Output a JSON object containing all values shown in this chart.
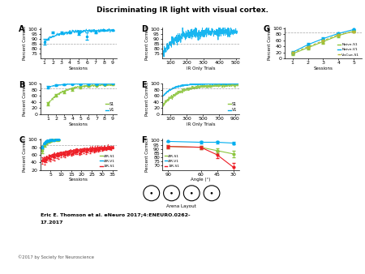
{
  "title": "Discriminating IR light with visual cortex.",
  "citation_line1": "Eric E. Thomson et al. eNeuro 2017;4:ENEURO.0262-",
  "citation_line2": "17.2017",
  "copyright": "©2017 by Society for Neuroscience",
  "color_cyan": "#00AEEF",
  "color_green": "#8DC63F",
  "color_blue": "#0072BC",
  "color_red": "#ED1C24",
  "color_olive": "#B5B935",
  "panel_A": {
    "label": "A",
    "xlabel": "Sessions",
    "ylabel": "Percent Correct",
    "xlim": [
      0.5,
      9.5
    ],
    "ylim": [
      70,
      102
    ],
    "yticks": [
      75,
      80,
      85,
      90,
      95,
      100
    ],
    "xticks": [
      1,
      2,
      3,
      4,
      5,
      6,
      7,
      8,
      9
    ],
    "sessions": [
      1,
      2,
      3,
      4,
      5,
      6,
      7,
      8,
      9
    ],
    "mean": [
      87,
      97,
      97,
      97,
      96,
      93,
      97,
      99,
      99
    ],
    "err": [
      3,
      1,
      1,
      1,
      2,
      4,
      1,
      0.5,
      0.5
    ],
    "color": "#00AEEF",
    "dashed_y": 85
  },
  "panel_B": {
    "label": "B",
    "xlabel": "Sessions",
    "ylabel": "Percent Correct",
    "xlim": [
      0,
      9.5
    ],
    "ylim": [
      0,
      102
    ],
    "yticks": [
      0,
      20,
      40,
      60,
      80,
      100
    ],
    "xticks": [
      1,
      2,
      3,
      4,
      5,
      6,
      7,
      8,
      9
    ],
    "sessions": [
      1,
      2,
      3,
      4,
      5,
      6,
      7,
      8,
      9
    ],
    "S1_mean": [
      35,
      62,
      73,
      82,
      88,
      93,
      94,
      96,
      97
    ],
    "S1_err": [
      5,
      5,
      5,
      4,
      3,
      2,
      2,
      1,
      1
    ],
    "V1_mean": [
      88,
      95,
      97,
      98,
      98,
      99,
      99,
      99,
      100
    ],
    "V1_err": [
      4,
      2,
      1,
      1,
      1,
      1,
      0.5,
      0.5,
      0.3
    ],
    "color_S1": "#8DC63F",
    "color_V1": "#00AEEF",
    "dashed_y": 85
  },
  "panel_C": {
    "label": "C",
    "xlabel": "Sessions",
    "ylabel": "Percent Correct",
    "xlim": [
      0,
      37
    ],
    "ylim": [
      20,
      102
    ],
    "yticks": [
      20,
      40,
      60,
      80,
      100
    ],
    "xticks": [
      5,
      10,
      15,
      20,
      25,
      30,
      35
    ],
    "fourR_S1_mean": [
      70,
      85,
      90,
      95,
      97,
      98,
      99,
      99,
      99
    ],
    "fourR_S1_err": [
      5,
      4,
      3,
      2,
      2,
      1,
      1,
      0.5,
      0.5
    ],
    "fourR_V1_mean": [
      80,
      90,
      95,
      97,
      98,
      99,
      99,
      100,
      100
    ],
    "fourR_V1_err": [
      4,
      3,
      2,
      1,
      1,
      0.5,
      0.5,
      0.3,
      0.3
    ],
    "oneR_S1_mean": [
      45,
      42,
      48,
      52,
      50,
      55,
      53,
      58,
      57,
      60,
      62,
      60,
      63,
      65,
      63,
      65,
      67,
      68,
      65,
      68,
      70,
      68,
      72,
      70,
      73,
      71,
      74,
      73,
      76,
      75,
      77,
      76,
      78,
      78,
      80
    ],
    "oneR_S1_err": [
      8,
      8,
      8,
      7,
      8,
      8,
      8,
      7,
      7,
      7,
      7,
      7,
      6,
      6,
      6,
      6,
      6,
      6,
      6,
      6,
      6,
      6,
      5,
      5,
      5,
      5,
      5,
      5,
      5,
      5,
      4,
      4,
      4,
      4,
      4
    ],
    "color_4RS1": "#8DC63F",
    "color_4RV1": "#00AEEF",
    "color_1RS1": "#ED1C24",
    "dashed_y": 85
  },
  "panel_D": {
    "label": "D",
    "xlabel": "IR Only Trials",
    "ylabel": "Percent Correct",
    "xlim": [
      50,
      520
    ],
    "ylim": [
      70,
      102
    ],
    "yticks": [
      75,
      80,
      85,
      90,
      95,
      100
    ],
    "xticks": [
      100,
      200,
      300,
      400,
      500
    ],
    "dashed_y": 85,
    "color": "#00AEEF"
  },
  "panel_E": {
    "label": "E",
    "xlabel": "IR Only Trials",
    "ylabel": "Percent Correct",
    "xlim": [
      0,
      950
    ],
    "ylim": [
      0,
      102
    ],
    "yticks": [
      0,
      20,
      40,
      60,
      80,
      100
    ],
    "xticks": [
      100,
      300,
      500,
      700,
      900
    ],
    "color_S1": "#8DC63F",
    "color_V1": "#00AEEF",
    "dashed_y": 85
  },
  "panel_F": {
    "label": "F",
    "xlabel": "Angle (°)",
    "ylabel": "Percent Correct",
    "ylim": [
      65,
      102
    ],
    "yticks": [
      70,
      75,
      80,
      85,
      90,
      95,
      100
    ],
    "xticks": [
      90,
      60,
      45,
      30
    ],
    "angles": [
      90,
      60,
      45,
      30
    ],
    "fourR_S1": [
      93,
      92,
      88,
      84
    ],
    "fourR_S1_err": [
      2,
      2,
      3,
      4
    ],
    "fourR_V1": [
      99,
      98,
      98,
      97
    ],
    "fourR_V1_err": [
      0.5,
      1,
      1,
      1
    ],
    "oneR_S1": [
      93,
      92,
      83,
      68
    ],
    "oneR_S1_err": [
      2,
      2,
      4,
      5
    ],
    "color_4RS1": "#8DC63F",
    "color_4RV1": "#00AEEF",
    "color_1RS1": "#ED1C24"
  },
  "panel_G": {
    "label": "G",
    "xlabel": "Sessions",
    "ylabel": "Percent Correct",
    "xlim": [
      0.5,
      5.5
    ],
    "ylim": [
      0,
      102
    ],
    "yticks": [
      0,
      20,
      40,
      60,
      80,
      100
    ],
    "xticks": [
      1,
      2,
      3,
      4,
      5
    ],
    "sessions": [
      1,
      2,
      3,
      4,
      5
    ],
    "naive_S1": [
      15,
      35,
      55,
      75,
      90
    ],
    "naive_S1_err": [
      4,
      5,
      6,
      5,
      3
    ],
    "naive_V1": [
      20,
      45,
      65,
      82,
      95
    ],
    "naive_V1_err": [
      4,
      5,
      5,
      4,
      2
    ],
    "viscue_S1": [
      18,
      38,
      58,
      78,
      88
    ],
    "viscue_S1_err": [
      4,
      5,
      6,
      4,
      3
    ],
    "color_naive_S1": "#8DC63F",
    "color_naive_V1": "#00AEEF",
    "color_viscue_S1": "#B5B935",
    "dashed_y": 85
  }
}
